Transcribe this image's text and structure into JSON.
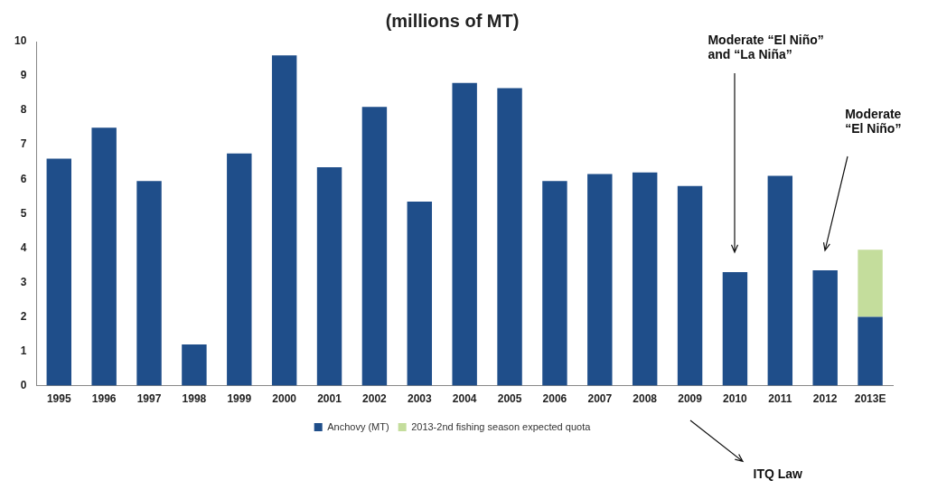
{
  "chart_data": {
    "type": "bar",
    "title": "(millions of MT)",
    "stacked": true,
    "categories": [
      "1995",
      "1996",
      "1997",
      "1998",
      "1999",
      "2000",
      "2001",
      "2002",
      "2003",
      "2004",
      "2005",
      "2006",
      "2007",
      "2008",
      "2009",
      "2010",
      "2011",
      "2012",
      "2013E"
    ],
    "series": [
      {
        "name": "Anchovy (MT)",
        "color": "#1f4e8a",
        "values": [
          6.6,
          7.5,
          5.95,
          1.2,
          6.75,
          9.6,
          6.35,
          8.1,
          5.35,
          8.8,
          8.65,
          5.95,
          6.15,
          6.2,
          5.8,
          3.3,
          6.1,
          3.35,
          2.0
        ]
      },
      {
        "name": "2013-2nd fishing season expected quota",
        "color": "#c4dd9c",
        "values": [
          null,
          null,
          null,
          null,
          null,
          null,
          null,
          null,
          null,
          null,
          null,
          null,
          null,
          null,
          null,
          null,
          null,
          null,
          1.95
        ]
      }
    ],
    "ylim": [
      0,
      10
    ],
    "yticks": [
      0,
      1,
      2,
      3,
      4,
      5,
      6,
      7,
      8,
      9,
      10
    ],
    "grid": false,
    "legend": "bottom",
    "annotations": [
      "Moderate “El Niño” and “La Niña”",
      "Moderate “El Niño”",
      "ITQ Law"
    ]
  }
}
